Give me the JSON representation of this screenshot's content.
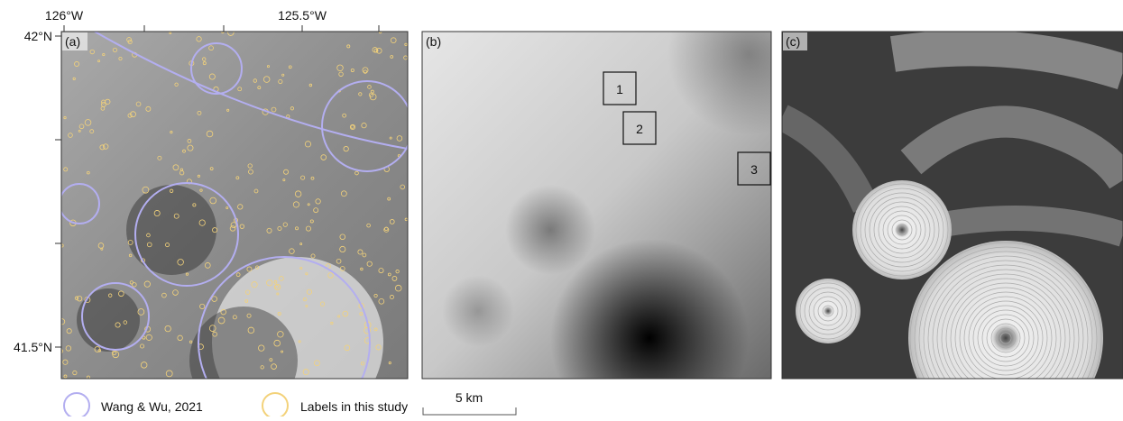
{
  "panel_a": {
    "label": "(a)",
    "x_ticks": [
      "126°W",
      "125.5°W"
    ],
    "y_ticks": [
      "42°N",
      "41.5°N"
    ]
  },
  "panel_b": {
    "label": "(b)",
    "boxes": [
      "1",
      "2",
      "3"
    ]
  },
  "panel_c": {
    "label": "(c)"
  },
  "legend": {
    "items": [
      "Wang & Wu, 2021",
      "Labels in this study"
    ]
  },
  "scale_bar": "5 km"
}
